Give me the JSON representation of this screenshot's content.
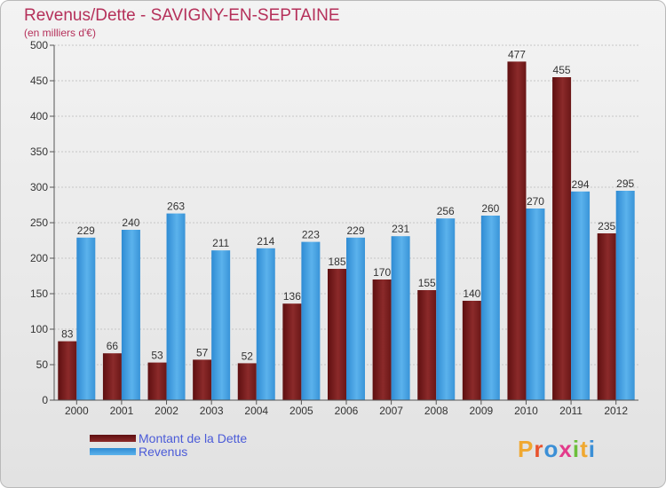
{
  "title": "Revenus/Dette - SAVIGNY-EN-SEPTAINE",
  "subtitle": "(en milliers d'€)",
  "logo": {
    "text": "Proxiti",
    "colors": [
      "#f0a830",
      "#e8532e",
      "#3b8fd6",
      "#e33b8b",
      "#6cbf3a",
      "#f0a830",
      "#3b8fd6"
    ]
  },
  "legend": {
    "position": "bottom-left",
    "items": [
      {
        "label": "Montant de la Dette",
        "color": "#7a1d1d"
      },
      {
        "label": "Revenus",
        "color": "#3d9be0"
      }
    ]
  },
  "chart_data": {
    "type": "bar",
    "categories": [
      "2000",
      "2001",
      "2002",
      "2003",
      "2004",
      "2005",
      "2006",
      "2007",
      "2008",
      "2009",
      "2010",
      "2011",
      "2012"
    ],
    "series": [
      {
        "name": "Montant de la Dette",
        "color": "#7a1d1d",
        "values": [
          83,
          66,
          53,
          57,
          52,
          136,
          185,
          170,
          155,
          140,
          477,
          455,
          235
        ]
      },
      {
        "name": "Revenus",
        "color": "#3d9be0",
        "values": [
          229,
          240,
          263,
          211,
          214,
          223,
          229,
          231,
          256,
          260,
          270,
          294,
          295
        ]
      }
    ],
    "ylim": [
      0,
      500
    ],
    "yticks": [
      0,
      50,
      100,
      150,
      200,
      250,
      300,
      350,
      400,
      450,
      500
    ],
    "grid": true,
    "data_labels": true
  }
}
